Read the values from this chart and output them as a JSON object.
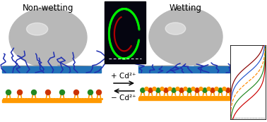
{
  "title_left": "Non-wetting",
  "title_right": "Wetting",
  "arrow_text_up": "+ Cd²⁺",
  "arrow_text_down": "− Cd²⁺",
  "bg_color": "#ffffff",
  "blue_bar_color": "#2272b8",
  "polymer_color": "#2030b0",
  "lipid_head_green": "#228822",
  "lipid_head_red": "#cc3300",
  "lipid_tail_color": "#ff9900",
  "line_colors": [
    "#cc0000",
    "#228822",
    "#ff8800",
    "#2255cc",
    "#880000"
  ],
  "line_styles": [
    "-",
    "-",
    "--",
    "-",
    "-"
  ]
}
